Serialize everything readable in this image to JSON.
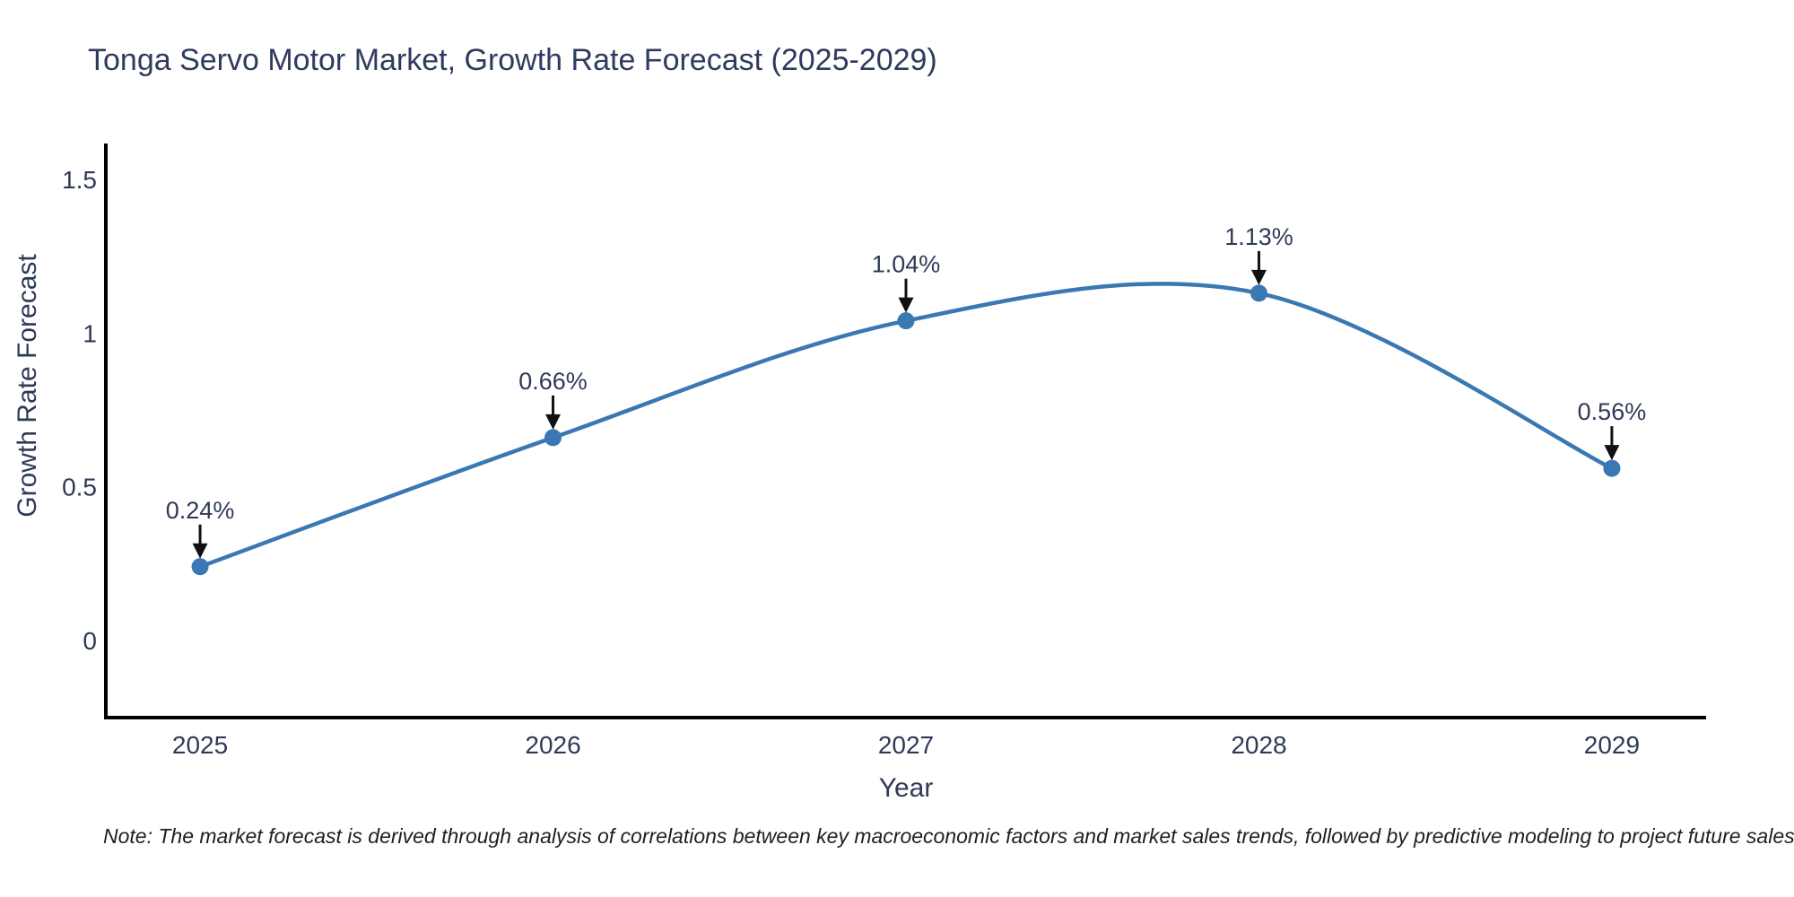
{
  "chart_data": {
    "type": "line",
    "title": "Tonga Servo Motor Market, Growth Rate Forecast (2025-2029)",
    "xlabel": "Year",
    "ylabel": "Growth Rate Forecast",
    "categories": [
      2025,
      2026,
      2027,
      2028,
      2029
    ],
    "values": [
      0.24,
      0.66,
      1.04,
      1.13,
      0.56
    ],
    "point_labels": [
      "0.24%",
      "0.66%",
      "1.04%",
      "1.13%",
      "0.56%"
    ],
    "yticks": [
      0,
      0.5,
      1,
      1.5
    ],
    "ytick_labels": [
      "0",
      "0.5",
      "1",
      "1.5"
    ],
    "ylim": [
      -0.251,
      1.617
    ],
    "xlim": [
      2024.733,
      2029.267
    ],
    "line_shape": "spline",
    "grid": false,
    "legend_position": "none",
    "colors": {
      "line": "#3a78b3",
      "marker": "#3a78b3",
      "axis": "#000000",
      "text": "#2e3a55",
      "title": "#2f3b5e",
      "arrow": "#111111",
      "background": "#ffffff"
    }
  },
  "note": "Note: The market forecast is derived through analysis of correlations between key macroeconomic factors and market sales trends, followed by predictive modeling to project future sales"
}
